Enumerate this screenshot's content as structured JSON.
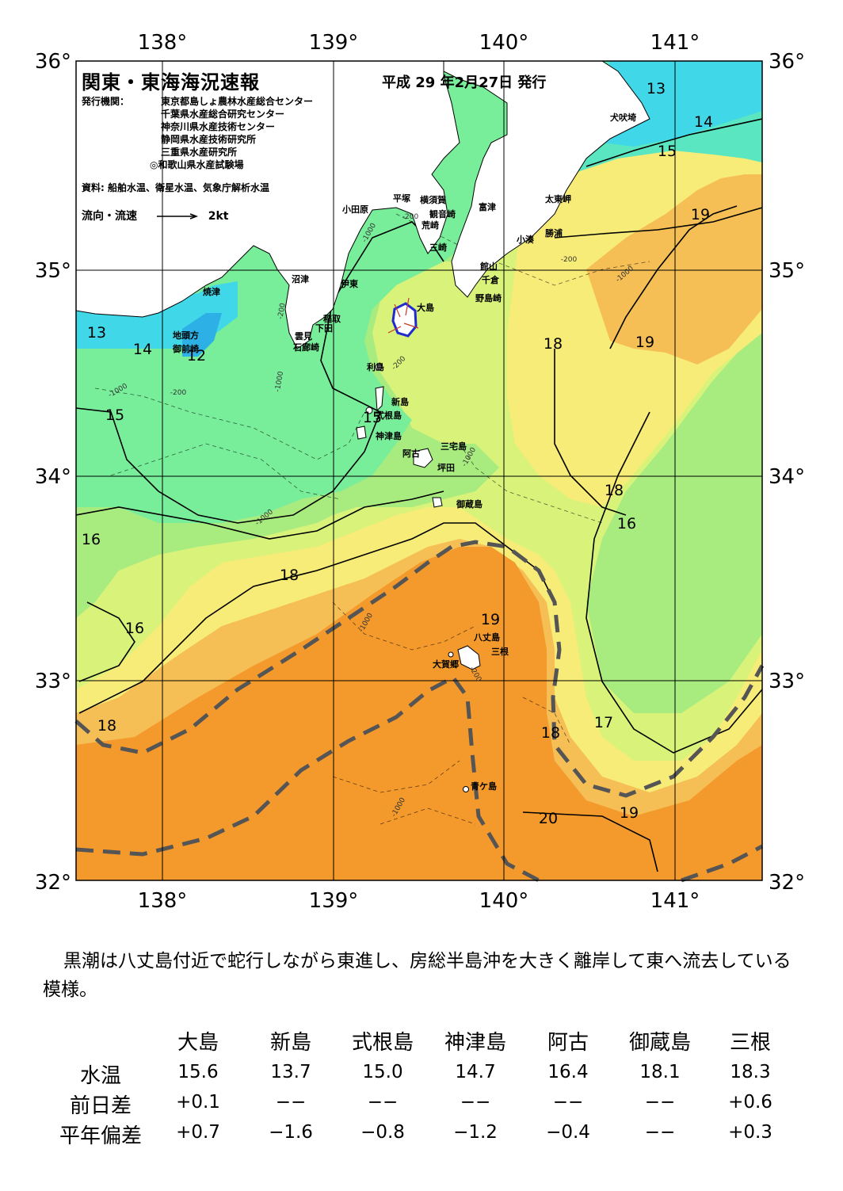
{
  "header": {
    "title": "関東・東海海況速報",
    "issue_date": "平成 29 年2月27日 発行",
    "issuer_label": "発行機関：",
    "issuers": [
      "東京都島しょ農林水産総合センター",
      "千葉県水産総合研究センター",
      "神奈川県水産技術センター",
      "静岡県水産技術研究所",
      "三重県水産研究所",
      "◎和歌山県水産試験場"
    ],
    "source": "資料: 船舶水温、衛星水温、気象庁解析水温",
    "legend_label": "流向・流速",
    "legend_speed": "2kt"
  },
  "map": {
    "lon_labels": [
      "138°",
      "139°",
      "140°",
      "141°"
    ],
    "lat_labels": [
      "36°",
      "35°",
      "34°",
      "33°",
      "32°"
    ],
    "isotherm_labels": [
      "13",
      "14",
      "15",
      "19",
      "13",
      "14",
      "12",
      "18",
      "19",
      "15",
      "15",
      "18",
      "16",
      "16",
      "18",
      "16",
      "19",
      "17",
      "18",
      "18",
      "20",
      "19"
    ],
    "depth_labels": [
      "-200",
      "-1000",
      "-200",
      "-1000",
      "-200",
      "-1000",
      "-200",
      "-1000",
      "-200",
      "-1000",
      "-1000",
      "-1000",
      "-1000",
      "-200"
    ],
    "place_names": [
      "犬吠埼",
      "太東岬",
      "勝浦",
      "小湊",
      "富津",
      "横須賀",
      "平塚",
      "観音崎",
      "荒崎",
      "三崎",
      "小田原",
      "館山",
      "千倉",
      "野島崎",
      "沼津",
      "伊東",
      "稲取",
      "下田",
      "雲見",
      "石廊崎",
      "焼津",
      "地頭方",
      "御前崎",
      "大島",
      "利島",
      "新島",
      "式根島",
      "神津島",
      "三宅島",
      "阿古",
      "坪田",
      "御蔵島",
      "八丈島",
      "三根",
      "大賀郷",
      "青ケ島"
    ],
    "colors": {
      "t12": "#2db0e6",
      "t13": "#40d8e8",
      "t14": "#5ae6c0",
      "t15": "#78ee9a",
      "t16": "#a8ec80",
      "t17": "#d9f27a",
      "t18": "#f7ec78",
      "t19": "#f5bf55",
      "t20": "#f49a2c",
      "land": "#ffffff",
      "kuroshio_axis": "#555555"
    }
  },
  "summary": "黒潮は八丈島付近で蛇行しながら東進し、房総半島沖を大きく離岸して東へ流去している模様。",
  "temperature_table": {
    "columns": [
      "大島",
      "新島",
      "式根島",
      "神津島",
      "阿古",
      "御蔵島",
      "三根"
    ],
    "rows": [
      {
        "label": "水温",
        "values": [
          "15.6",
          "13.7",
          "15.0",
          "14.7",
          "16.4",
          "18.1",
          "18.3"
        ]
      },
      {
        "label": "前日差",
        "values": [
          "+0.1",
          "−−",
          "−−",
          "−−",
          "−−",
          "−−",
          "+0.6"
        ]
      },
      {
        "label": "平年偏差",
        "values": [
          "+0.7",
          "−1.6",
          "−0.8",
          "−1.2",
          "−0.4",
          "−−",
          "+0.3"
        ]
      }
    ]
  }
}
